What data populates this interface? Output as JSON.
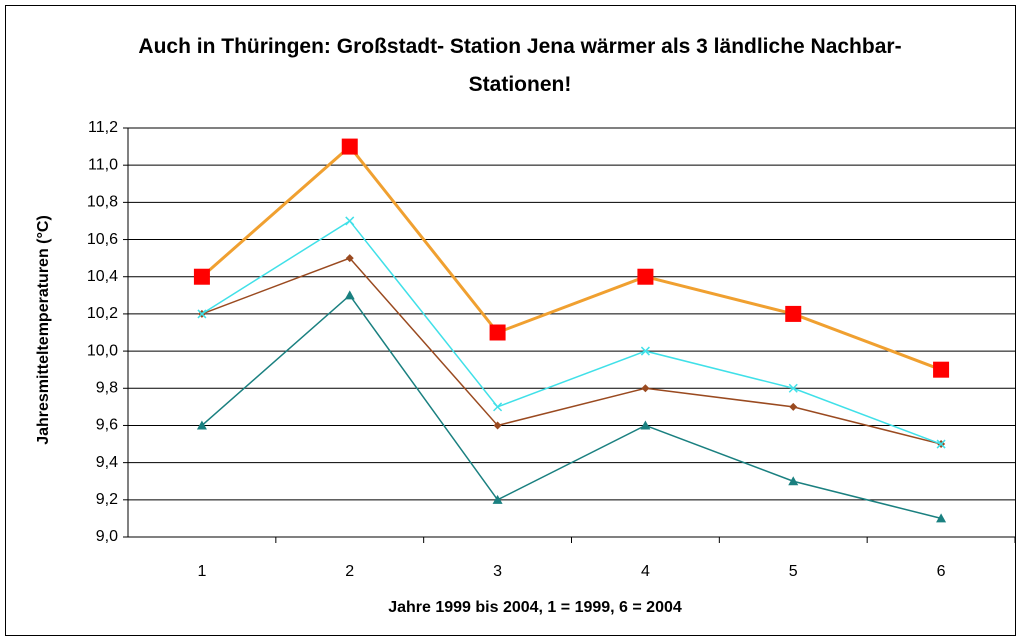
{
  "chart_data": {
    "type": "line",
    "title": "Auch in Thüringen: Großstadt- Station Jena wärmer als 3 ländliche Nachbar- Stationen!",
    "xlabel": "Jahre 1999 bis 2004, 1 = 1999, 6 = 2004",
    "ylabel": "Jahresmitteltemperaturen (°C)",
    "categories": [
      "1",
      "2",
      "3",
      "4",
      "5",
      "6"
    ],
    "series": [
      {
        "color": "#f0a030",
        "marker": "square",
        "marker_color": "#ff0000",
        "values": [
          10.4,
          11.1,
          10.1,
          10.4,
          10.2,
          9.9
        ]
      },
      {
        "color": "#40e0e8",
        "marker": "x",
        "marker_color": "#40e0e8",
        "values": [
          10.2,
          10.7,
          9.7,
          10.0,
          9.8,
          9.5
        ]
      },
      {
        "color": "#9a4a20",
        "marker": "diamond",
        "marker_color": "#9a4a20",
        "values": [
          10.2,
          10.5,
          9.6,
          9.8,
          9.7,
          9.5
        ]
      },
      {
        "color": "#1a8080",
        "marker": "triangle",
        "marker_color": "#1a8080",
        "values": [
          9.6,
          10.3,
          9.2,
          9.6,
          9.3,
          9.1
        ]
      }
    ],
    "ylim": [
      9.0,
      11.2
    ],
    "yticks": [
      {
        "value": 9.0,
        "label": "9,0"
      },
      {
        "value": 9.2,
        "label": "9,2"
      },
      {
        "value": 9.4,
        "label": "9,4"
      },
      {
        "value": 9.6,
        "label": "9,6"
      },
      {
        "value": 9.8,
        "label": "9,8"
      },
      {
        "value": 10.0,
        "label": "10,0"
      },
      {
        "value": 10.2,
        "label": "10,2"
      },
      {
        "value": 10.4,
        "label": "10,4"
      },
      {
        "value": 10.6,
        "label": "10,6"
      },
      {
        "value": 10.8,
        "label": "10,8"
      },
      {
        "value": 11.0,
        "label": "11,0"
      },
      {
        "value": 11.2,
        "label": "11,2"
      }
    ],
    "grid": true
  }
}
